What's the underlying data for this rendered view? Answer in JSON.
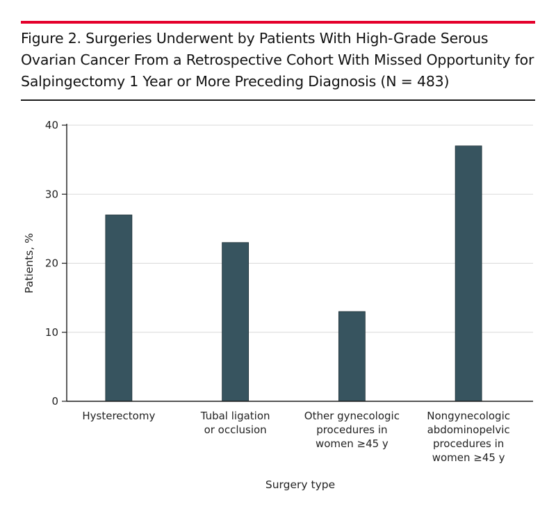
{
  "colors": {
    "accent_rule": "#e4002b",
    "bar_fill": "#37545f",
    "gridline": "#d9d9d9",
    "axis": "#1a1a1a"
  },
  "figure": {
    "title": "Figure 2. Surgeries Underwent by Patients With High-Grade Serous Ovarian Cancer From a Retrospective Cohort With Missed Opportunity for Salpingectomy 1 Year or More Preceding Diagnosis (N = 483)"
  },
  "chart_data": {
    "type": "bar",
    "categories": [
      [
        "Hysterectomy"
      ],
      [
        "Tubal ligation",
        "or occlusion"
      ],
      [
        "Other gynecologic",
        "procedures in",
        "women ≥45 y"
      ],
      [
        "Nongynecologic",
        "abdominopelvic",
        "procedures in",
        "women ≥45 y"
      ]
    ],
    "values": [
      27,
      23,
      13,
      37
    ],
    "xlabel": "Surgery type",
    "ylabel": "Patients, %",
    "ylim": [
      0,
      40
    ],
    "yticks": [
      0,
      10,
      20,
      30,
      40
    ],
    "grid": true,
    "legend": "none"
  }
}
